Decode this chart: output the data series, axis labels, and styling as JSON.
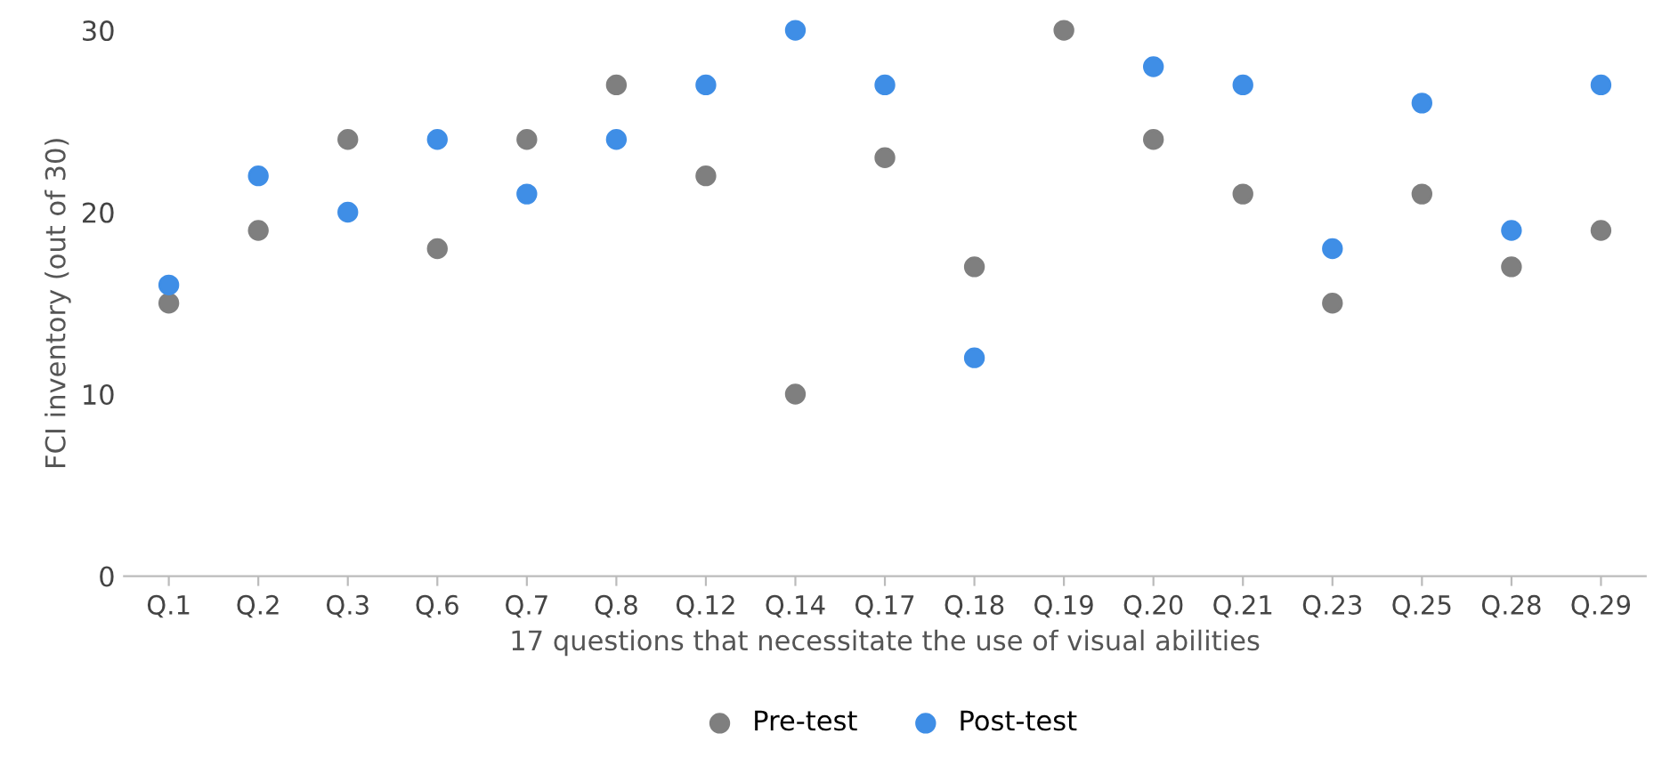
{
  "chart_data": {
    "type": "scatter",
    "xlabel": "17 questions that necessitate the use of visual abilities",
    "ylabel": "FCI inventory (out of 30)",
    "categories": [
      "Q.1",
      "Q.2",
      "Q.3",
      "Q.6",
      "Q.7",
      "Q.8",
      "Q.12",
      "Q.14",
      "Q.17",
      "Q.18",
      "Q.19",
      "Q.20",
      "Q.21",
      "Q.23",
      "Q.25",
      "Q.28",
      "Q.29"
    ],
    "series": [
      {
        "name": "Pre-test",
        "color": "#7f7f7f",
        "values": [
          15,
          19,
          24,
          18,
          24,
          27,
          22,
          10,
          23,
          17,
          30,
          24,
          21,
          15,
          21,
          17,
          19
        ]
      },
      {
        "name": "Post-test",
        "color": "#3f8ee6",
        "values": [
          16,
          22,
          20,
          24,
          21,
          24,
          27,
          30,
          27,
          12,
          null,
          28,
          27,
          18,
          26,
          19,
          27
        ]
      }
    ],
    "ylim": [
      0,
      30
    ],
    "yticks": [
      0,
      10,
      20,
      30
    ],
    "grid": false,
    "legend": "bottom",
    "marker": "circle"
  }
}
